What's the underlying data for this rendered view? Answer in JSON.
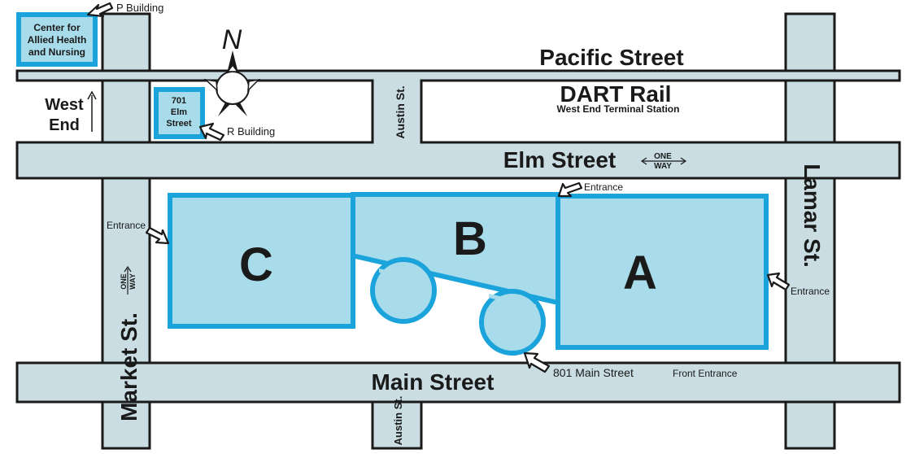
{
  "streets": {
    "pacific": "Pacific Street",
    "dart": "DART Rail",
    "dart_sub": "West End Terminal Station",
    "elm": "Elm Street",
    "main": "Main Street",
    "austin_top": "Austin St.",
    "austin_bottom": "Austin St.",
    "market": "Market St.",
    "lamar": "Lamar St.",
    "west_end_line1": "West",
    "west_end_line2": "End"
  },
  "one_way": {
    "line1": "ONE",
    "line2": "WAY"
  },
  "buildings": {
    "a": "A",
    "b": "B",
    "c": "C",
    "center_line1": "Center for",
    "center_line2": "Allied Health",
    "center_line3": "and Nursing",
    "elm701_line1": "701",
    "elm701_line2": "Elm",
    "elm701_line3": "Street"
  },
  "callouts": {
    "p_building": "P Building",
    "r_building": "R Building",
    "entrance_top": "Entrance",
    "entrance_left": "Entrance",
    "entrance_right": "Entrance",
    "front_address": "801 Main Street",
    "front_label": "Front Entrance"
  },
  "compass": {
    "north_letter": "N"
  },
  "colors": {
    "road_fill": "#c9dde3",
    "building_fill": "#a9dceb",
    "building_outline": "#1ba3dc",
    "text": "#1a1a1a"
  }
}
